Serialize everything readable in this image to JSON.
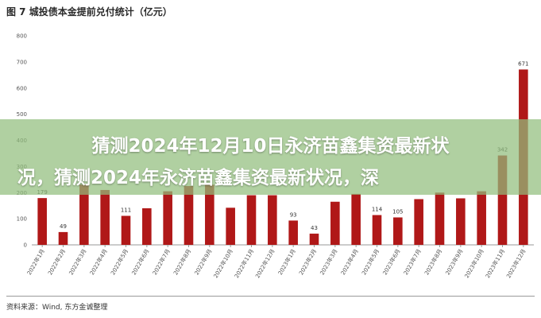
{
  "figure_title": "图 7  城投债本金提前兑付统计（亿元）",
  "overlay": {
    "line1": "猜测2024年12月10日永济苗鑫集资最新状",
    "line2": "况，猜测2024年永济苗鑫集资最新状况，深"
  },
  "source": "资料来源：Wind, 东方金诚整理",
  "colors": {
    "bar": "#b01818",
    "axis": "#999999",
    "overlay": "#91be7d"
  },
  "chart_data": {
    "type": "bar",
    "categories": [
      "2022年1月",
      "2022年2月",
      "2022年3月",
      "2022年4月",
      "2022年5月",
      "2022年6月",
      "2022年7月",
      "2022年8月",
      "2022年9月",
      "2022年10月",
      "2022年11月",
      "2022年12月",
      "2023年1月",
      "2023年2月",
      "2023年3月",
      "2023年4月",
      "2023年5月",
      "2023年6月",
      "2023年7月",
      "2023年8月",
      "2023年9月",
      "2023年10月",
      "2023年11月",
      "2023年12月"
    ],
    "values": [
      179,
      49,
      230,
      210,
      111,
      140,
      205,
      225,
      230,
      142,
      190,
      190,
      93,
      43,
      165,
      195,
      114,
      105,
      175,
      200,
      178,
      205,
      342,
      671
    ],
    "data_labels": [
      "179",
      "49",
      "",
      "",
      "111",
      "",
      "",
      "",
      "",
      "",
      "",
      "",
      "93",
      "43",
      "",
      "",
      "114",
      "105",
      "",
      "",
      "",
      "",
      "342",
      "671"
    ],
    "yticks": [
      "0",
      "100",
      "200",
      "300",
      "400",
      "500",
      "600",
      "700",
      "800"
    ],
    "ylim": [
      0,
      800
    ],
    "title": "城投债本金提前兑付统计（亿元）",
    "xlabel": "",
    "ylabel": ""
  }
}
